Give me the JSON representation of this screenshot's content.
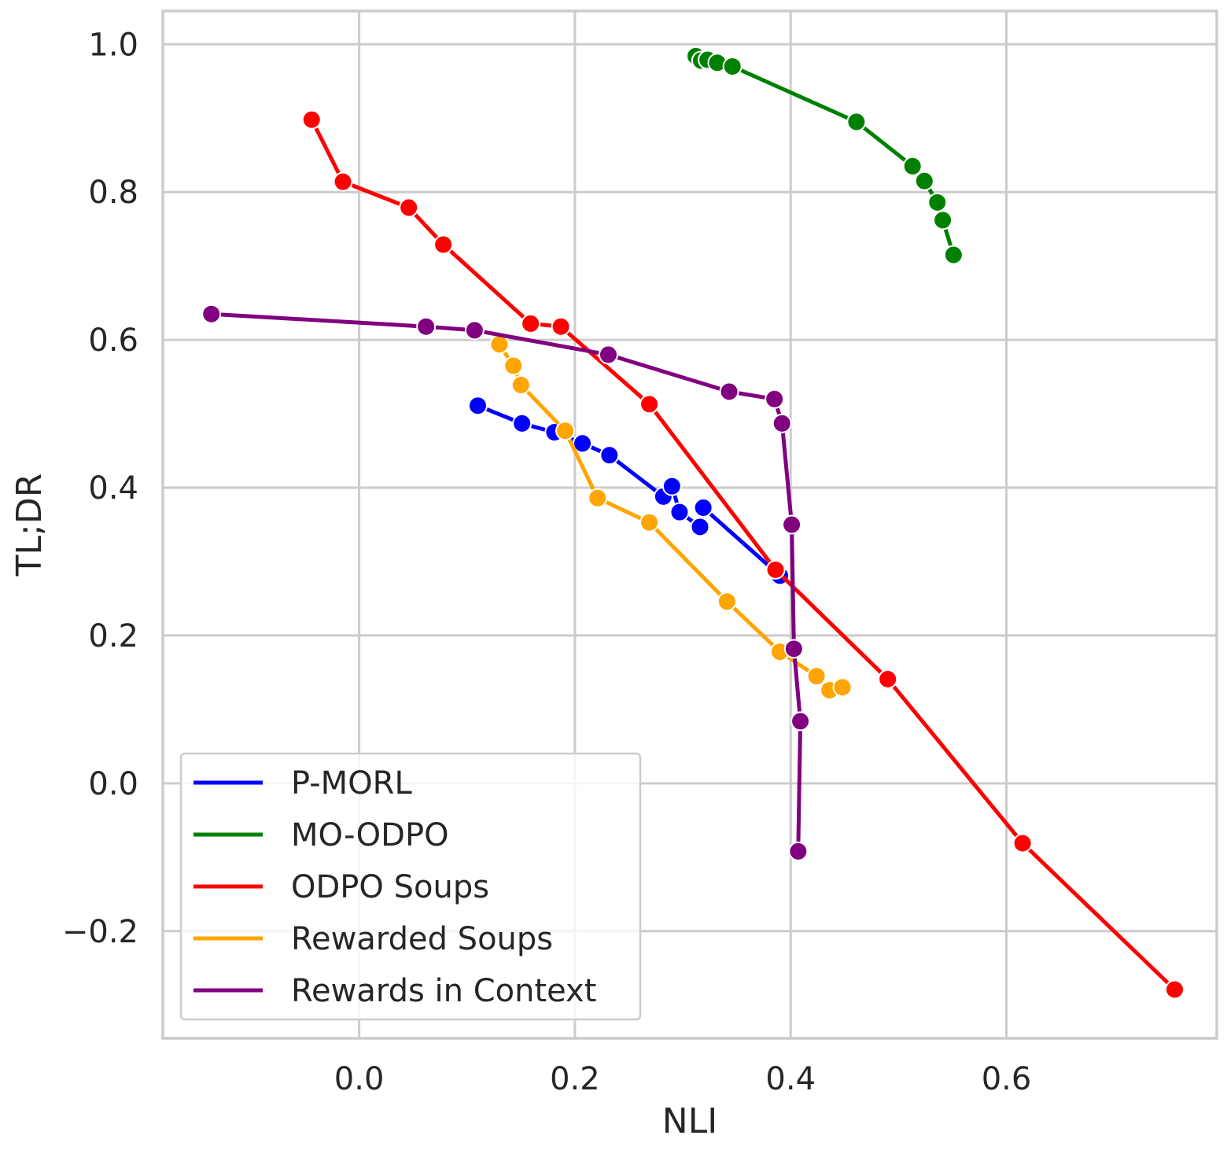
{
  "chart_data": {
    "type": "line",
    "title": "",
    "xlabel": "NLI",
    "ylabel": "TL;DR",
    "xlim": [
      -0.182,
      0.795
    ],
    "ylim": [
      -0.345,
      1.045
    ],
    "xticks": [
      0.0,
      0.2,
      0.4,
      0.6
    ],
    "xtick_labels": [
      "0.0",
      "0.2",
      "0.4",
      "0.6"
    ],
    "yticks": [
      -0.2,
      0.0,
      0.2,
      0.4,
      0.6,
      0.8,
      1.0
    ],
    "ytick_labels": [
      "−0.2",
      "0.0",
      "0.2",
      "0.4",
      "0.6",
      "0.8",
      "1.0"
    ],
    "grid": true,
    "legend_position": "lower-left",
    "series": [
      {
        "name": "P-MORL",
        "color": "#0000ff",
        "points": [
          [
            0.11,
            0.511
          ],
          [
            0.151,
            0.487
          ],
          [
            0.181,
            0.475
          ],
          [
            0.207,
            0.46
          ],
          [
            0.232,
            0.444
          ],
          [
            0.282,
            0.388
          ],
          [
            0.29,
            0.402
          ],
          [
            0.297,
            0.367
          ],
          [
            0.316,
            0.347
          ],
          [
            0.319,
            0.373
          ],
          [
            0.39,
            0.281
          ]
        ]
      },
      {
        "name": "MO-ODPO",
        "color": "#008000",
        "points": [
          [
            0.312,
            0.984
          ],
          [
            0.317,
            0.978
          ],
          [
            0.323,
            0.979
          ],
          [
            0.332,
            0.975
          ],
          [
            0.346,
            0.97
          ],
          [
            0.461,
            0.895
          ],
          [
            0.513,
            0.835
          ],
          [
            0.524,
            0.815
          ],
          [
            0.536,
            0.786
          ],
          [
            0.541,
            0.762
          ],
          [
            0.551,
            0.715
          ]
        ]
      },
      {
        "name": "ODPO Soups",
        "color": "#ff0000",
        "points": [
          [
            -0.044,
            0.898
          ],
          [
            -0.015,
            0.814
          ],
          [
            0.046,
            0.779
          ],
          [
            0.078,
            0.729
          ],
          [
            0.159,
            0.622
          ],
          [
            0.187,
            0.618
          ],
          [
            0.269,
            0.513
          ],
          [
            0.386,
            0.289
          ],
          [
            0.49,
            0.141
          ],
          [
            0.615,
            -0.081
          ],
          [
            0.756,
            -0.279
          ]
        ]
      },
      {
        "name": "Rewarded Soups",
        "color": "#ffa500",
        "points": [
          [
            0.13,
            0.594
          ],
          [
            0.143,
            0.565
          ],
          [
            0.15,
            0.539
          ],
          [
            0.191,
            0.477
          ],
          [
            0.221,
            0.386
          ],
          [
            0.269,
            0.353
          ],
          [
            0.341,
            0.246
          ],
          [
            0.39,
            0.178
          ],
          [
            0.424,
            0.145
          ],
          [
            0.436,
            0.126
          ],
          [
            0.448,
            0.13
          ]
        ]
      },
      {
        "name": "Rewards in Context",
        "color": "#800080",
        "points": [
          [
            -0.137,
            0.635
          ],
          [
            0.062,
            0.618
          ],
          [
            0.107,
            0.613
          ],
          [
            0.231,
            0.58
          ],
          [
            0.343,
            0.53
          ],
          [
            0.385,
            0.52
          ],
          [
            0.392,
            0.487
          ],
          [
            0.401,
            0.35
          ],
          [
            0.403,
            0.182
          ],
          [
            0.409,
            0.084
          ],
          [
            0.407,
            -0.092
          ]
        ]
      }
    ]
  }
}
